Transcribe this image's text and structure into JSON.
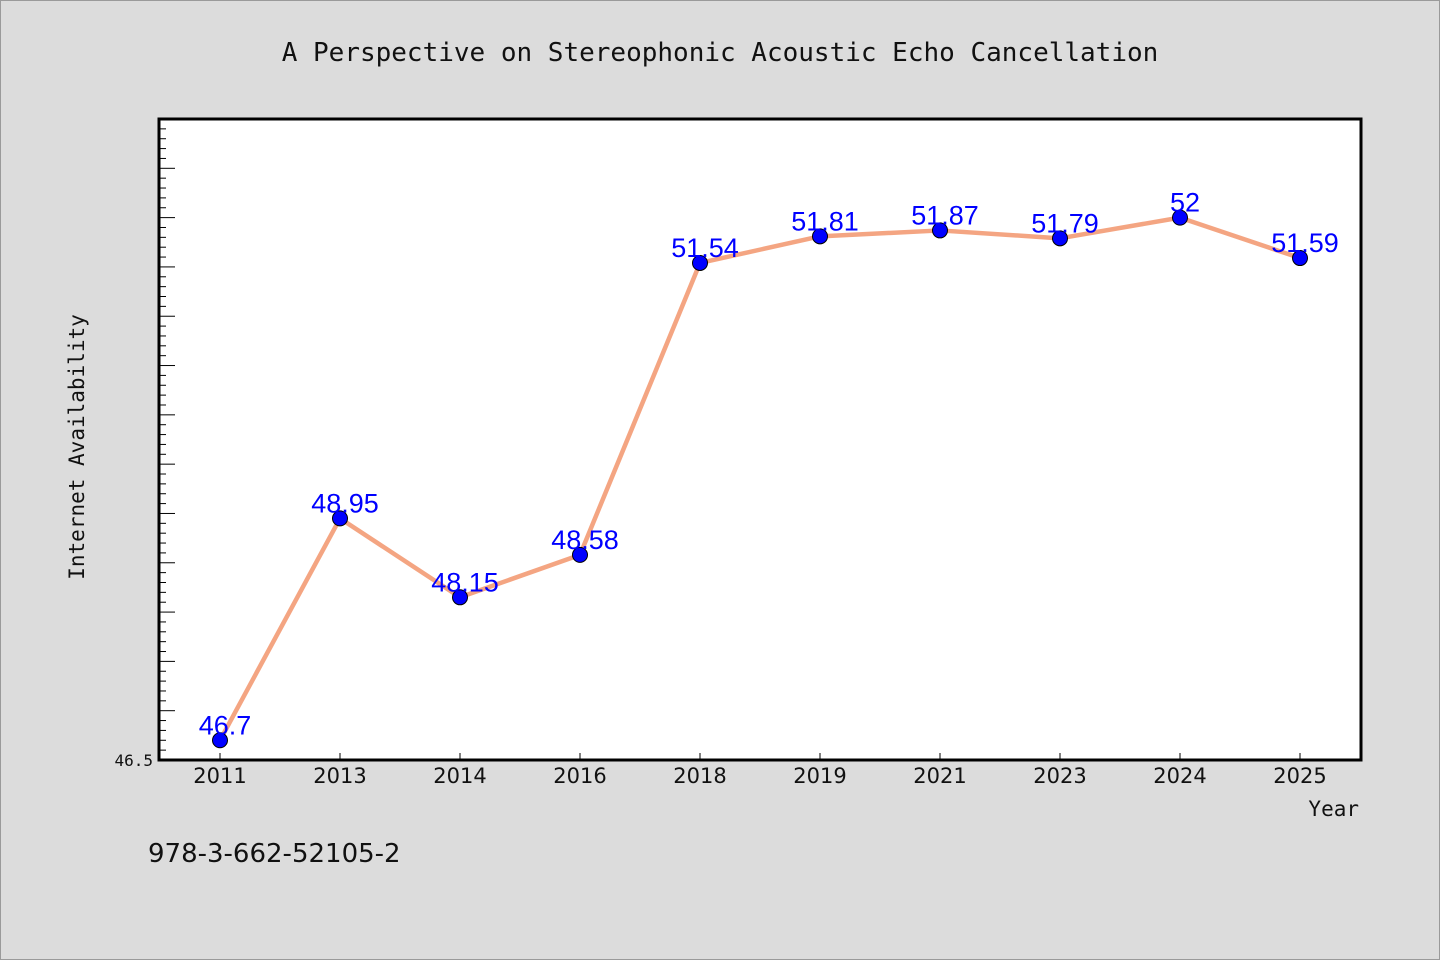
{
  "chart_data": {
    "type": "line",
    "title": "A Perspective on Stereophonic Acoustic Echo Cancellation",
    "xlabel": "Year",
    "ylabel": "Internet Availability",
    "categories": [
      "2011",
      "2013",
      "2014",
      "2016",
      "2018",
      "2019",
      "2021",
      "2023",
      "2024",
      "2025"
    ],
    "series": [
      {
        "values": [
          46.7,
          48.95,
          48.15,
          48.58,
          51.54,
          51.81,
          51.87,
          51.79,
          52,
          51.59
        ],
        "data_labels": [
          "46.7",
          "48.95",
          "48.15",
          "48.58",
          "51.54",
          "51.81",
          "51.87",
          "51.79",
          "52",
          "51.59"
        ]
      }
    ],
    "ylim": [
      46.5,
      53.0
    ],
    "yticks": [
      "46.5"
    ],
    "grid": false,
    "legend": "none",
    "colors": {
      "line": "#f4a582",
      "marker": "#0000ff",
      "data_label": "#0000ff",
      "plot_background": "#ffffff",
      "figure_background": "#dcdcdc"
    }
  },
  "footer": {
    "isbn": "978-3-662-52105-2"
  }
}
